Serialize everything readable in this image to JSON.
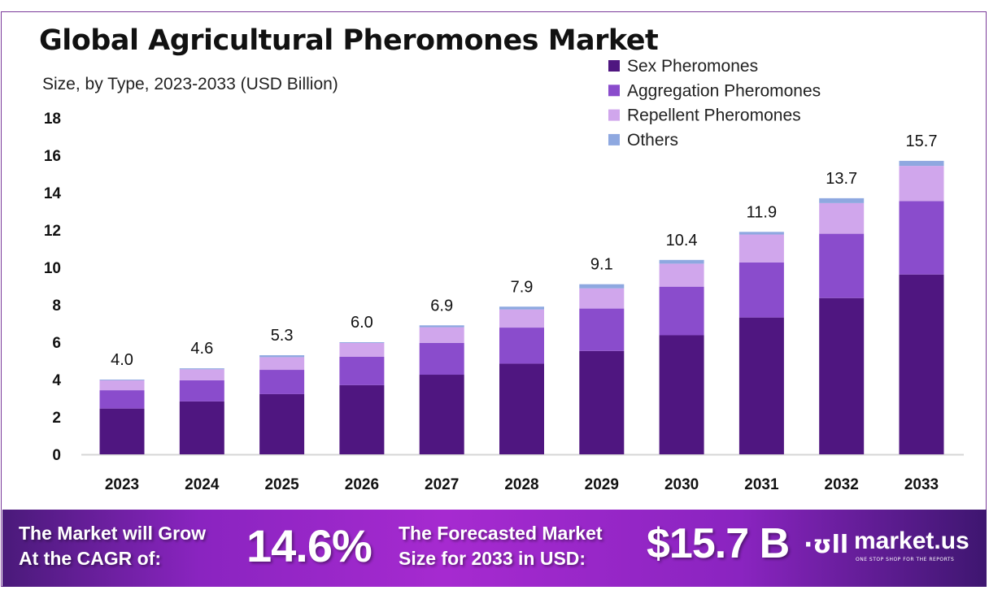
{
  "chart_data": {
    "type": "bar",
    "stacked": true,
    "title": "Global Agricultural Pheromones Market",
    "subtitle": "Size, by Type, 2023-2033 (USD Billion)",
    "categories": [
      "2023",
      "2024",
      "2025",
      "2026",
      "2027",
      "2028",
      "2029",
      "2030",
      "2031",
      "2032",
      "2033"
    ],
    "series": [
      {
        "name": "Sex Pheromones",
        "color": "#4f1680",
        "values": [
          2.45,
          2.83,
          3.22,
          3.7,
          4.26,
          4.85,
          5.53,
          6.37,
          7.32,
          8.36,
          9.62
        ]
      },
      {
        "name": "Aggregation Pheromones",
        "color": "#8a4ccc",
        "values": [
          0.98,
          1.13,
          1.3,
          1.52,
          1.7,
          1.93,
          2.27,
          2.6,
          2.95,
          3.44,
          3.93
        ]
      },
      {
        "name": "Repellent Pheromones",
        "color": "#d0a6ec",
        "values": [
          0.53,
          0.59,
          0.68,
          0.74,
          0.84,
          0.97,
          1.08,
          1.23,
          1.49,
          1.64,
          1.88
        ]
      },
      {
        "name": "Others",
        "color": "#8ea8e0",
        "values": [
          0.04,
          0.05,
          0.1,
          0.04,
          0.1,
          0.15,
          0.22,
          0.2,
          0.14,
          0.26,
          0.27
        ]
      }
    ],
    "totals": [
      "4.0",
      "4.6",
      "5.3",
      "6.0",
      "6.9",
      "7.9",
      "9.1",
      "10.4",
      "11.9",
      "13.7",
      "15.7"
    ],
    "ylim": [
      0,
      18
    ],
    "yticks": [
      "0",
      "2",
      "4",
      "6",
      "8",
      "10",
      "12",
      "14",
      "16",
      "18"
    ],
    "grid": false,
    "legend_placement": "top-right"
  },
  "banner": {
    "cagr_label_1": "The Market will Grow",
    "cagr_label_2": "At the CAGR of:",
    "cagr_value": "14.6%",
    "forecast_label_1": "The Forecasted Market",
    "forecast_label_2": "Size for 2033 in USD:",
    "forecast_value": "$15.7 B",
    "logo_name": "market.us",
    "logo_tagline": "ONE STOP SHOP FOR THE REPORTS"
  }
}
